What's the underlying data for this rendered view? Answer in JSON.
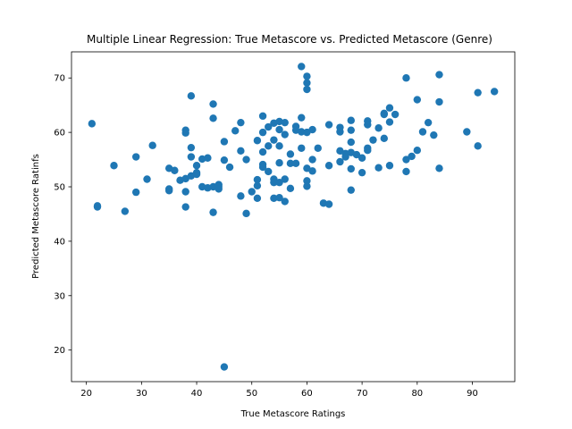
{
  "chart_data": {
    "type": "scatter",
    "title": "Multiple Linear Regression: True Metascore vs. Predicted Metascore (Genre)",
    "xlabel": "True Metascore Ratings",
    "ylabel": "Predicted Metascore Ratinfs",
    "xlim": [
      17.3,
      97.7
    ],
    "ylim": [
      14.2,
      74.8
    ],
    "xticks": [
      20,
      30,
      40,
      50,
      60,
      70,
      80,
      90
    ],
    "yticks": [
      20,
      30,
      40,
      50,
      60,
      70
    ],
    "grid": false,
    "legend": "none",
    "point_color": "#1f77b4",
    "points": [
      [
        21,
        61.6
      ],
      [
        22,
        46.5
      ],
      [
        22,
        46.3
      ],
      [
        25,
        53.9
      ],
      [
        27,
        45.5
      ],
      [
        29,
        55.5
      ],
      [
        29,
        49
      ],
      [
        31,
        51.4
      ],
      [
        32,
        57.6
      ],
      [
        35,
        53.4
      ],
      [
        35,
        49.6
      ],
      [
        35,
        49.3
      ],
      [
        36,
        53
      ],
      [
        37,
        51.2
      ],
      [
        38,
        60.4
      ],
      [
        38,
        59.9
      ],
      [
        38,
        51.5
      ],
      [
        38,
        49.1
      ],
      [
        38,
        46.3
      ],
      [
        39,
        66.7
      ],
      [
        39,
        57.2
      ],
      [
        39,
        55.5
      ],
      [
        39,
        52
      ],
      [
        40,
        53.9
      ],
      [
        40,
        52.6
      ],
      [
        40,
        52.3
      ],
      [
        41,
        55.1
      ],
      [
        41,
        50
      ],
      [
        42,
        55.3
      ],
      [
        42,
        49.8
      ],
      [
        43,
        65.2
      ],
      [
        43,
        62.6
      ],
      [
        43,
        50
      ],
      [
        43,
        45.3
      ],
      [
        44,
        50.4
      ],
      [
        44,
        50
      ],
      [
        44,
        49.6
      ],
      [
        45,
        58.3
      ],
      [
        45,
        54.9
      ],
      [
        45,
        16.9
      ],
      [
        46,
        53.6
      ],
      [
        47,
        60.3
      ],
      [
        48,
        61.8
      ],
      [
        48,
        56.6
      ],
      [
        48,
        48.3
      ],
      [
        49,
        55
      ],
      [
        49,
        45.1
      ],
      [
        50,
        49.1
      ],
      [
        51,
        58.5
      ],
      [
        51,
        51.3
      ],
      [
        51,
        50.2
      ],
      [
        51,
        47.9
      ],
      [
        52,
        63
      ],
      [
        52,
        60
      ],
      [
        52,
        56.4
      ],
      [
        52,
        54.1
      ],
      [
        52,
        53.6
      ],
      [
        53,
        61
      ],
      [
        53,
        57.5
      ],
      [
        53,
        52.8
      ],
      [
        54,
        61.7
      ],
      [
        54,
        58.6
      ],
      [
        54,
        51.4
      ],
      [
        54,
        50.8
      ],
      [
        54,
        47.9
      ],
      [
        55,
        62
      ],
      [
        55,
        60.5
      ],
      [
        55,
        57.5
      ],
      [
        55,
        54.4
      ],
      [
        55,
        50.8
      ],
      [
        55,
        48
      ],
      [
        56,
        61.8
      ],
      [
        56,
        59.6
      ],
      [
        56,
        51.4
      ],
      [
        56,
        47.3
      ],
      [
        57,
        56
      ],
      [
        57,
        54.3
      ],
      [
        57,
        49.7
      ],
      [
        58,
        61.1
      ],
      [
        58,
        60.4
      ],
      [
        58,
        54.3
      ],
      [
        59,
        72.1
      ],
      [
        59,
        62.7
      ],
      [
        59,
        60.1
      ],
      [
        59,
        57.1
      ],
      [
        60,
        70.3
      ],
      [
        60,
        69.1
      ],
      [
        60,
        67.9
      ],
      [
        60,
        60
      ],
      [
        60,
        53.4
      ],
      [
        60,
        51.1
      ],
      [
        60,
        50.1
      ],
      [
        61,
        60.5
      ],
      [
        61,
        55
      ],
      [
        61,
        52.9
      ],
      [
        62,
        57.1
      ],
      [
        63,
        47
      ],
      [
        64,
        61.4
      ],
      [
        64,
        53.9
      ],
      [
        64,
        46.8
      ],
      [
        66,
        60.9
      ],
      [
        66,
        60.1
      ],
      [
        66,
        56.6
      ],
      [
        66,
        54.6
      ],
      [
        67,
        56.1
      ],
      [
        67,
        55.5
      ],
      [
        68,
        62.2
      ],
      [
        68,
        60.4
      ],
      [
        68,
        58.2
      ],
      [
        68,
        56.3
      ],
      [
        68,
        53.3
      ],
      [
        68,
        49.4
      ],
      [
        69,
        55.9
      ],
      [
        70,
        55.3
      ],
      [
        70,
        52.6
      ],
      [
        71,
        62.1
      ],
      [
        71,
        61.4
      ],
      [
        71,
        57.1
      ],
      [
        71,
        56.7
      ],
      [
        72,
        58.6
      ],
      [
        73,
        60.8
      ],
      [
        73,
        53.5
      ],
      [
        74,
        63.5
      ],
      [
        74,
        63.3
      ],
      [
        74,
        58.9
      ],
      [
        75,
        64.5
      ],
      [
        75,
        61.9
      ],
      [
        75,
        53.9
      ],
      [
        76,
        63.3
      ],
      [
        78,
        70
      ],
      [
        78,
        55
      ],
      [
        78,
        52.8
      ],
      [
        79,
        55.6
      ],
      [
        80,
        66
      ],
      [
        80,
        56.7
      ],
      [
        81,
        60.1
      ],
      [
        82,
        61.8
      ],
      [
        83,
        59.5
      ],
      [
        84,
        70.6
      ],
      [
        84,
        65.6
      ],
      [
        84,
        53.4
      ],
      [
        89,
        60.1
      ],
      [
        91,
        67.3
      ],
      [
        91,
        57.5
      ],
      [
        94,
        67.5
      ]
    ]
  }
}
